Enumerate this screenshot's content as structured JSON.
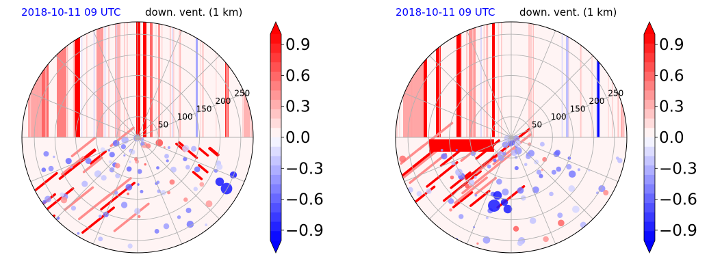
{
  "colors": {
    "positive_max": "#ff0000",
    "negative_max": "#0000ff",
    "neutral": "#ffffff",
    "grid": "#b0b0b0",
    "title_date": "#0000ff",
    "title_variable": "#000000"
  },
  "chart_data": [
    {
      "type": "heatmap",
      "projection": "polar",
      "title_date": "2018-10-11 09 UTC",
      "title_variable": "down. vent. (1 km)",
      "radial_ticks": [
        "50",
        "100",
        "150",
        "200",
        "250"
      ],
      "radial_tick_values": [
        50,
        100,
        150,
        200,
        250
      ],
      "r_max": 280,
      "grid": true,
      "colorbar": {
        "ticks": [
          "0.9",
          "0.6",
          "0.3",
          "0.0",
          "−0.3",
          "−0.6",
          "−0.9"
        ],
        "tick_values": [
          0.9,
          0.6,
          0.3,
          0.0,
          -0.3,
          -0.6,
          -0.9
        ],
        "vmin": -1.0,
        "vmax": 1.0,
        "extend": "both",
        "cmap": "bwr"
      }
    },
    {
      "type": "heatmap",
      "projection": "polar",
      "title_date": "2018-10-11 09 UTC",
      "title_variable": "down. vent. (1 km)",
      "radial_ticks": [
        "50",
        "100",
        "150",
        "200",
        "250"
      ],
      "radial_tick_values": [
        50,
        100,
        150,
        200,
        250
      ],
      "r_max": 280,
      "grid": true,
      "colorbar": {
        "ticks": [
          "0.9",
          "0.6",
          "0.3",
          "0.0",
          "−0.3",
          "−0.6",
          "−0.9"
        ],
        "tick_values": [
          0.9,
          0.6,
          0.3,
          0.0,
          -0.3,
          -0.6,
          -0.9
        ],
        "vmin": -1.0,
        "vmax": 1.0,
        "extend": "both",
        "cmap": "bwr"
      }
    }
  ]
}
